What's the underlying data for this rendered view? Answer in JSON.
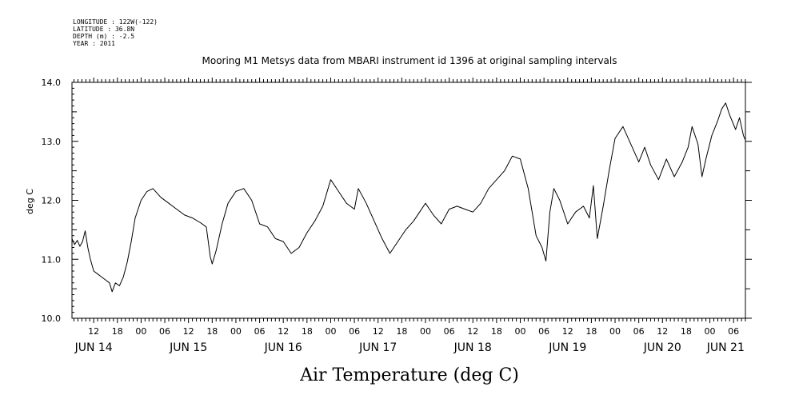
{
  "header": {
    "meta_lines": [
      "LONGITUDE : 122W(-122)",
      "LATITUDE : 36.8N",
      "DEPTH (m) : -2.5",
      "YEAR : 2011"
    ],
    "title": "Mooring M1 Metsys data from MBARI instrument id 1396 at original sampling intervals"
  },
  "chart_data": {
    "type": "line",
    "title": "Mooring M1 Metsys data from MBARI instrument id 1396 at original sampling intervals",
    "xlabel": "Air Temperature (deg C)",
    "ylabel": "deg C",
    "xlim": [
      "2011-06-14T06:30",
      "2011-06-21T09:00"
    ],
    "ylim": [
      10.0,
      14.0
    ],
    "grid": false,
    "y_ticks": [
      "10.0",
      "11.0",
      "12.0",
      "13.0",
      "14.0"
    ],
    "x_hour_ticks": [
      {
        "t": "2011-06-14T12:00",
        "label": "12"
      },
      {
        "t": "2011-06-14T18:00",
        "label": "18"
      },
      {
        "t": "2011-06-15T00:00",
        "label": "00"
      },
      {
        "t": "2011-06-15T06:00",
        "label": "06"
      },
      {
        "t": "2011-06-15T12:00",
        "label": "12"
      },
      {
        "t": "2011-06-15T18:00",
        "label": "18"
      },
      {
        "t": "2011-06-16T00:00",
        "label": "00"
      },
      {
        "t": "2011-06-16T06:00",
        "label": "06"
      },
      {
        "t": "2011-06-16T12:00",
        "label": "12"
      },
      {
        "t": "2011-06-16T18:00",
        "label": "18"
      },
      {
        "t": "2011-06-17T00:00",
        "label": "00"
      },
      {
        "t": "2011-06-17T06:00",
        "label": "06"
      },
      {
        "t": "2011-06-17T12:00",
        "label": "12"
      },
      {
        "t": "2011-06-17T18:00",
        "label": "18"
      },
      {
        "t": "2011-06-18T00:00",
        "label": "00"
      },
      {
        "t": "2011-06-18T06:00",
        "label": "06"
      },
      {
        "t": "2011-06-18T12:00",
        "label": "12"
      },
      {
        "t": "2011-06-18T18:00",
        "label": "18"
      },
      {
        "t": "2011-06-19T00:00",
        "label": "00"
      },
      {
        "t": "2011-06-19T06:00",
        "label": "06"
      },
      {
        "t": "2011-06-19T12:00",
        "label": "12"
      },
      {
        "t": "2011-06-19T18:00",
        "label": "18"
      },
      {
        "t": "2011-06-20T00:00",
        "label": "00"
      },
      {
        "t": "2011-06-20T06:00",
        "label": "06"
      },
      {
        "t": "2011-06-20T12:00",
        "label": "12"
      },
      {
        "t": "2011-06-20T18:00",
        "label": "18"
      },
      {
        "t": "2011-06-21T00:00",
        "label": "00"
      },
      {
        "t": "2011-06-21T06:00",
        "label": "06"
      }
    ],
    "x_day_labels": [
      {
        "t": "2011-06-14T12:00",
        "label": "JUN 14"
      },
      {
        "t": "2011-06-15T12:00",
        "label": "JUN 15"
      },
      {
        "t": "2011-06-16T12:00",
        "label": "JUN 16"
      },
      {
        "t": "2011-06-17T12:00",
        "label": "JUN 17"
      },
      {
        "t": "2011-06-18T12:00",
        "label": "JUN 18"
      },
      {
        "t": "2011-06-19T12:00",
        "label": "JUN 19"
      },
      {
        "t": "2011-06-20T12:00",
        "label": "JUN 20"
      },
      {
        "t": "2011-06-21T04:00",
        "label": "JUN 21"
      }
    ],
    "series": [
      {
        "points": [
          [
            "2011-06-14T06:30",
            11.35
          ],
          [
            "2011-06-14T07:10",
            11.25
          ],
          [
            "2011-06-14T07:50",
            11.32
          ],
          [
            "2011-06-14T08:30",
            11.22
          ],
          [
            "2011-06-14T09:10",
            11.3
          ],
          [
            "2011-06-14T09:50",
            11.48
          ],
          [
            "2011-06-14T10:30",
            11.2
          ],
          [
            "2011-06-14T11:10",
            11.0
          ],
          [
            "2011-06-14T12:00",
            10.8
          ],
          [
            "2011-06-14T13:00",
            10.75
          ],
          [
            "2011-06-14T14:00",
            10.7
          ],
          [
            "2011-06-14T15:00",
            10.65
          ],
          [
            "2011-06-14T16:00",
            10.6
          ],
          [
            "2011-06-14T16:40",
            10.45
          ],
          [
            "2011-06-14T17:30",
            10.6
          ],
          [
            "2011-06-14T18:30",
            10.55
          ],
          [
            "2011-06-14T19:30",
            10.7
          ],
          [
            "2011-06-14T20:30",
            10.95
          ],
          [
            "2011-06-14T21:30",
            11.3
          ],
          [
            "2011-06-14T22:30",
            11.7
          ],
          [
            "2011-06-15T00:00",
            12.0
          ],
          [
            "2011-06-15T01:30",
            12.15
          ],
          [
            "2011-06-15T03:00",
            12.2
          ],
          [
            "2011-06-15T05:00",
            12.05
          ],
          [
            "2011-06-15T07:00",
            11.95
          ],
          [
            "2011-06-15T09:00",
            11.85
          ],
          [
            "2011-06-15T11:00",
            11.75
          ],
          [
            "2011-06-15T13:00",
            11.7
          ],
          [
            "2011-06-15T15:00",
            11.62
          ],
          [
            "2011-06-15T16:30",
            11.55
          ],
          [
            "2011-06-15T17:00",
            11.3
          ],
          [
            "2011-06-15T17:30",
            11.05
          ],
          [
            "2011-06-15T18:00",
            10.92
          ],
          [
            "2011-06-15T19:00",
            11.15
          ],
          [
            "2011-06-15T20:30",
            11.6
          ],
          [
            "2011-06-15T22:00",
            11.95
          ],
          [
            "2011-06-16T00:00",
            12.15
          ],
          [
            "2011-06-16T02:00",
            12.2
          ],
          [
            "2011-06-16T04:00",
            12.0
          ],
          [
            "2011-06-16T06:00",
            11.6
          ],
          [
            "2011-06-16T08:00",
            11.55
          ],
          [
            "2011-06-16T10:00",
            11.35
          ],
          [
            "2011-06-16T12:00",
            11.3
          ],
          [
            "2011-06-16T14:00",
            11.1
          ],
          [
            "2011-06-16T16:00",
            11.2
          ],
          [
            "2011-06-16T18:00",
            11.45
          ],
          [
            "2011-06-16T20:00",
            11.65
          ],
          [
            "2011-06-16T22:00",
            11.9
          ],
          [
            "2011-06-17T00:00",
            12.35
          ],
          [
            "2011-06-17T02:00",
            12.15
          ],
          [
            "2011-06-17T04:00",
            11.95
          ],
          [
            "2011-06-17T06:00",
            11.85
          ],
          [
            "2011-06-17T07:00",
            12.2
          ],
          [
            "2011-06-17T09:00",
            11.95
          ],
          [
            "2011-06-17T11:00",
            11.65
          ],
          [
            "2011-06-17T13:00",
            11.35
          ],
          [
            "2011-06-17T15:00",
            11.1
          ],
          [
            "2011-06-17T17:00",
            11.3
          ],
          [
            "2011-06-17T19:00",
            11.5
          ],
          [
            "2011-06-17T21:00",
            11.65
          ],
          [
            "2011-06-18T00:00",
            11.95
          ],
          [
            "2011-06-18T02:00",
            11.75
          ],
          [
            "2011-06-18T04:00",
            11.6
          ],
          [
            "2011-06-18T06:00",
            11.85
          ],
          [
            "2011-06-18T08:00",
            11.9
          ],
          [
            "2011-06-18T10:00",
            11.85
          ],
          [
            "2011-06-18T12:00",
            11.8
          ],
          [
            "2011-06-18T14:00",
            11.95
          ],
          [
            "2011-06-18T16:00",
            12.2
          ],
          [
            "2011-06-18T18:00",
            12.35
          ],
          [
            "2011-06-18T20:00",
            12.5
          ],
          [
            "2011-06-18T22:00",
            12.75
          ],
          [
            "2011-06-19T00:00",
            12.7
          ],
          [
            "2011-06-19T02:00",
            12.2
          ],
          [
            "2011-06-19T04:00",
            11.4
          ],
          [
            "2011-06-19T05:30",
            11.2
          ],
          [
            "2011-06-19T06:30",
            10.97
          ],
          [
            "2011-06-19T07:30",
            11.8
          ],
          [
            "2011-06-19T08:30",
            12.2
          ],
          [
            "2011-06-19T10:00",
            12.0
          ],
          [
            "2011-06-19T12:00",
            11.6
          ],
          [
            "2011-06-19T14:00",
            11.8
          ],
          [
            "2011-06-19T16:00",
            11.9
          ],
          [
            "2011-06-19T17:30",
            11.7
          ],
          [
            "2011-06-19T18:30",
            12.25
          ],
          [
            "2011-06-19T19:30",
            11.35
          ],
          [
            "2011-06-19T21:00",
            11.9
          ],
          [
            "2011-06-19T22:30",
            12.5
          ],
          [
            "2011-06-20T00:00",
            13.05
          ],
          [
            "2011-06-20T02:00",
            13.25
          ],
          [
            "2011-06-20T04:00",
            12.95
          ],
          [
            "2011-06-20T06:00",
            12.65
          ],
          [
            "2011-06-20T07:30",
            12.9
          ],
          [
            "2011-06-20T09:00",
            12.6
          ],
          [
            "2011-06-20T11:00",
            12.35
          ],
          [
            "2011-06-20T13:00",
            12.7
          ],
          [
            "2011-06-20T15:00",
            12.4
          ],
          [
            "2011-06-20T17:00",
            12.65
          ],
          [
            "2011-06-20T18:30",
            12.9
          ],
          [
            "2011-06-20T19:30",
            13.25
          ],
          [
            "2011-06-20T21:00",
            12.95
          ],
          [
            "2011-06-20T22:00",
            12.4
          ],
          [
            "2011-06-20T23:00",
            12.7
          ],
          [
            "2011-06-21T00:30",
            13.1
          ],
          [
            "2011-06-21T02:00",
            13.35
          ],
          [
            "2011-06-21T03:00",
            13.55
          ],
          [
            "2011-06-21T04:00",
            13.65
          ],
          [
            "2011-06-21T05:00",
            13.45
          ],
          [
            "2011-06-21T06:30",
            13.2
          ],
          [
            "2011-06-21T07:30",
            13.4
          ],
          [
            "2011-06-21T08:30",
            13.1
          ],
          [
            "2011-06-21T09:00",
            13.02
          ]
        ]
      }
    ]
  }
}
